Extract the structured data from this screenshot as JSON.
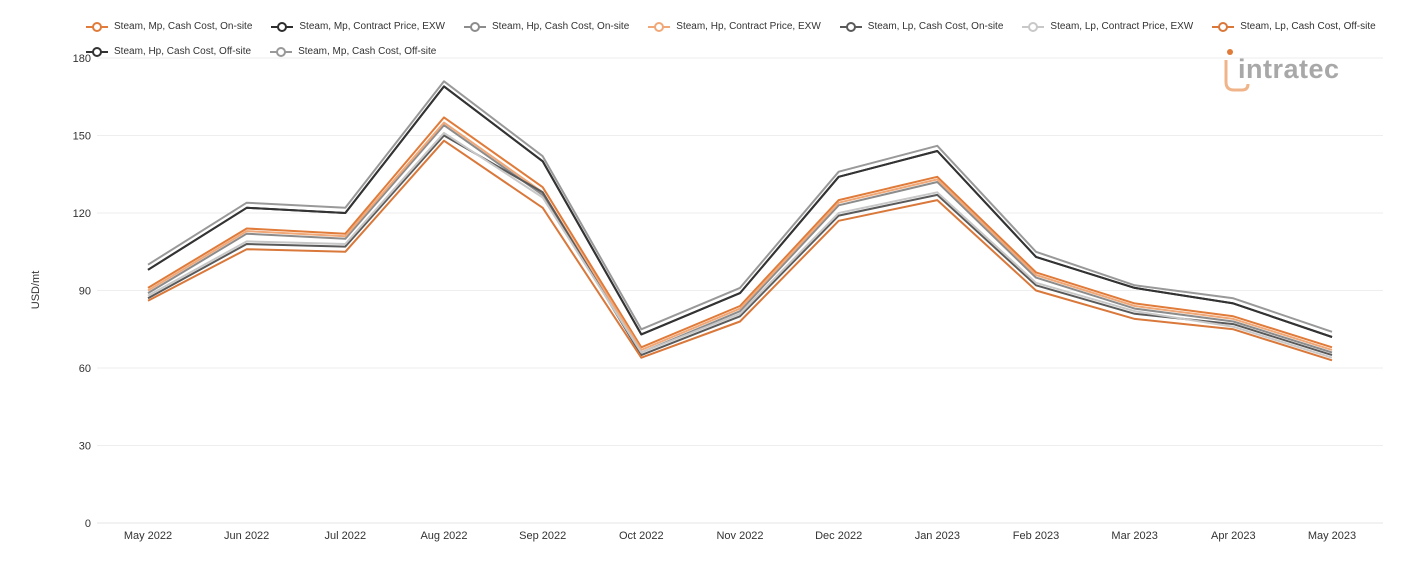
{
  "chart_data": {
    "type": "line",
    "xlabel": "",
    "ylabel": "USD/mt",
    "ylim": [
      0,
      180
    ],
    "yticks": [
      0,
      30,
      60,
      90,
      120,
      150,
      180
    ],
    "grid": true,
    "legend_position": "top-left",
    "categories": [
      "May 2022",
      "Jun 2022",
      "Jul 2022",
      "Aug 2022",
      "Sep 2022",
      "Oct 2022",
      "Nov 2022",
      "Dec 2022",
      "Jan 2023",
      "Feb 2023",
      "Mar 2023",
      "Apr 2023",
      "May 2023"
    ],
    "series": [
      {
        "name": "Steam, Mp, Cash Cost, On-site",
        "color": "#e07b39",
        "values": [
          91,
          114,
          112,
          157,
          130,
          68,
          84,
          125,
          134,
          97,
          85,
          80,
          68
        ]
      },
      {
        "name": "Steam, Mp, Contract Price, EXW",
        "color": "#2e2e2e",
        "values": [
          98,
          122,
          120,
          169,
          140,
          73,
          89,
          134,
          144,
          103,
          91,
          85,
          72
        ]
      },
      {
        "name": "Steam, Hp, Cash Cost, On-site",
        "color": "#8c8c8c",
        "values": [
          89,
          112,
          110,
          154,
          127,
          66,
          82,
          123,
          132,
          95,
          83,
          78,
          66
        ]
      },
      {
        "name": "Steam, Hp, Contract Price, EXW",
        "color": "#f0a878",
        "values": [
          90,
          113,
          111,
          155,
          128,
          67,
          83,
          124,
          133,
          96,
          84,
          79,
          67
        ]
      },
      {
        "name": "Steam, Lp, Cash Cost, On-site",
        "color": "#5a5a5a",
        "values": [
          87,
          108,
          107,
          150,
          128,
          65,
          80,
          119,
          127,
          92,
          81,
          77,
          65
        ]
      },
      {
        "name": "Steam, Lp, Contract Price, EXW",
        "color": "#c8c8c8",
        "values": [
          88,
          109,
          108,
          151,
          126,
          66,
          81,
          120,
          128,
          93,
          82,
          76,
          64
        ]
      },
      {
        "name": "Steam, Lp, Cash Cost, Off-site",
        "color": "#d9783a",
        "values": [
          86,
          106,
          105,
          148,
          122,
          64,
          78,
          117,
          125,
          90,
          79,
          75,
          63
        ]
      },
      {
        "name": "Steam, Hp, Cash Cost, Off-site",
        "color": "#333333",
        "values": [
          98,
          122,
          120,
          169,
          140,
          73,
          89,
          134,
          144,
          103,
          91,
          85,
          72
        ]
      },
      {
        "name": "Steam, Mp, Cash Cost, Off-site",
        "color": "#999999",
        "values": [
          100,
          124,
          122,
          171,
          142,
          75,
          91,
          136,
          146,
          105,
          92,
          87,
          74
        ]
      }
    ]
  },
  "brand": {
    "logo_text": "intratec",
    "logo_color": "#a8a8a8",
    "accent_color": "#e07b39"
  }
}
